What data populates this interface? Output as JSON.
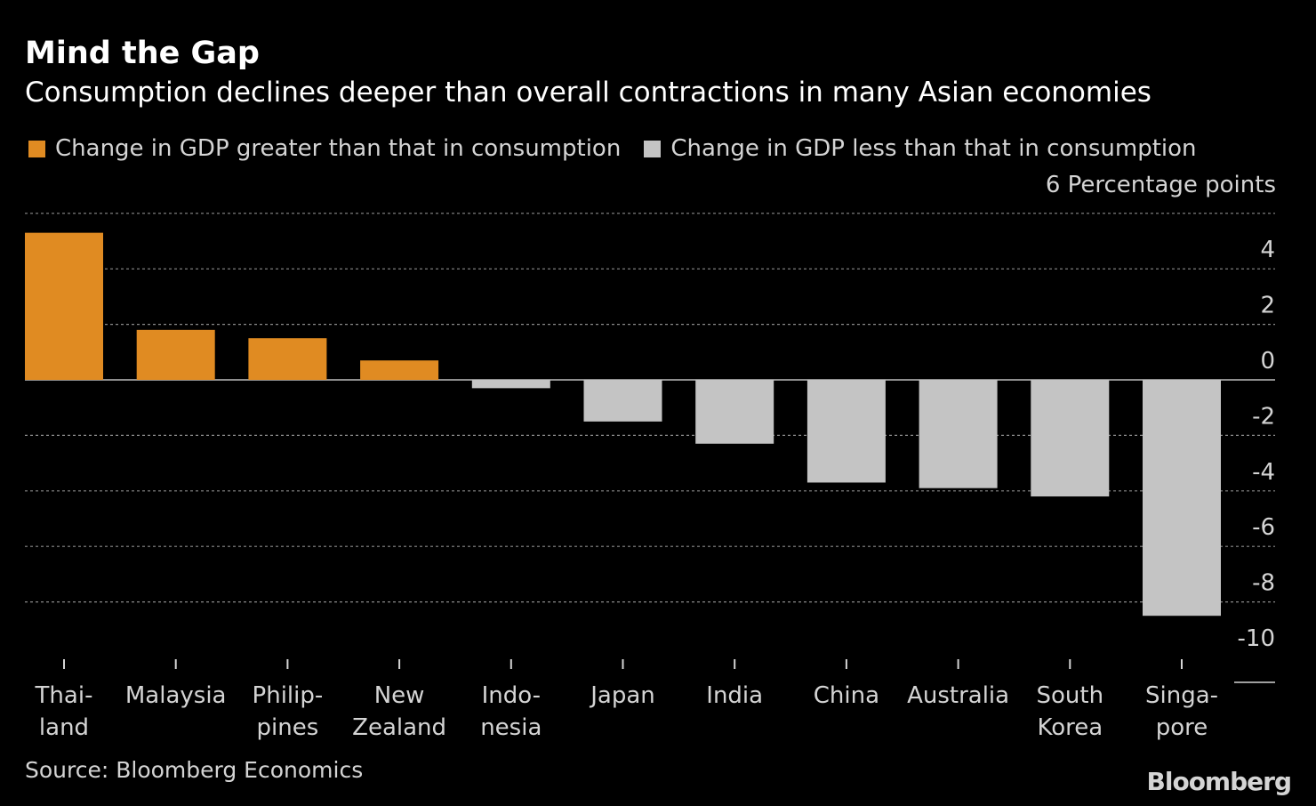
{
  "header": {
    "title": "Mind the Gap",
    "subtitle": "Consumption declines deeper than overall contractions in many Asian economies"
  },
  "legend": [
    {
      "label": "Change in GDP greater than that in consumption",
      "color": "#e08b22"
    },
    {
      "label": "Change in GDP less than that in consumption",
      "color": "#c4c4c4"
    }
  ],
  "footer": {
    "source": "Source: Bloomberg Economics",
    "brand": "Bloomberg"
  },
  "chart_data": {
    "type": "bar",
    "title": "Mind the Gap",
    "ylabel": "Percentage points",
    "unit_label": "6 Percentage points",
    "ylim": [
      -10,
      6
    ],
    "yticks": [
      {
        "value": 6,
        "label": ""
      },
      {
        "value": 4,
        "label": "4"
      },
      {
        "value": 2,
        "label": "2"
      },
      {
        "value": 0,
        "label": "0"
      },
      {
        "value": -2,
        "label": "-2"
      },
      {
        "value": -4,
        "label": "-4"
      },
      {
        "value": -6,
        "label": "-6"
      },
      {
        "value": -8,
        "label": "-8"
      },
      {
        "value": -10,
        "label": "-10"
      }
    ],
    "categories": [
      [
        "Thai-",
        "land"
      ],
      [
        "Malaysia"
      ],
      [
        "Philip-",
        "pines"
      ],
      [
        "New",
        "Zealand"
      ],
      [
        "Indo-",
        "nesia"
      ],
      [
        "Japan"
      ],
      [
        "India"
      ],
      [
        "China"
      ],
      [
        "Australia"
      ],
      [
        "South",
        "Korea"
      ],
      [
        "Singa-",
        "pore"
      ]
    ],
    "values": [
      5.3,
      1.8,
      1.5,
      0.7,
      -0.3,
      -1.5,
      -2.3,
      -3.7,
      -3.9,
      -4.2,
      -8.5
    ],
    "colors": {
      "positive": "#e08b22",
      "negative": "#c4c4c4",
      "grid": "#8a8a8a",
      "tick": "#d4d4d4"
    }
  }
}
